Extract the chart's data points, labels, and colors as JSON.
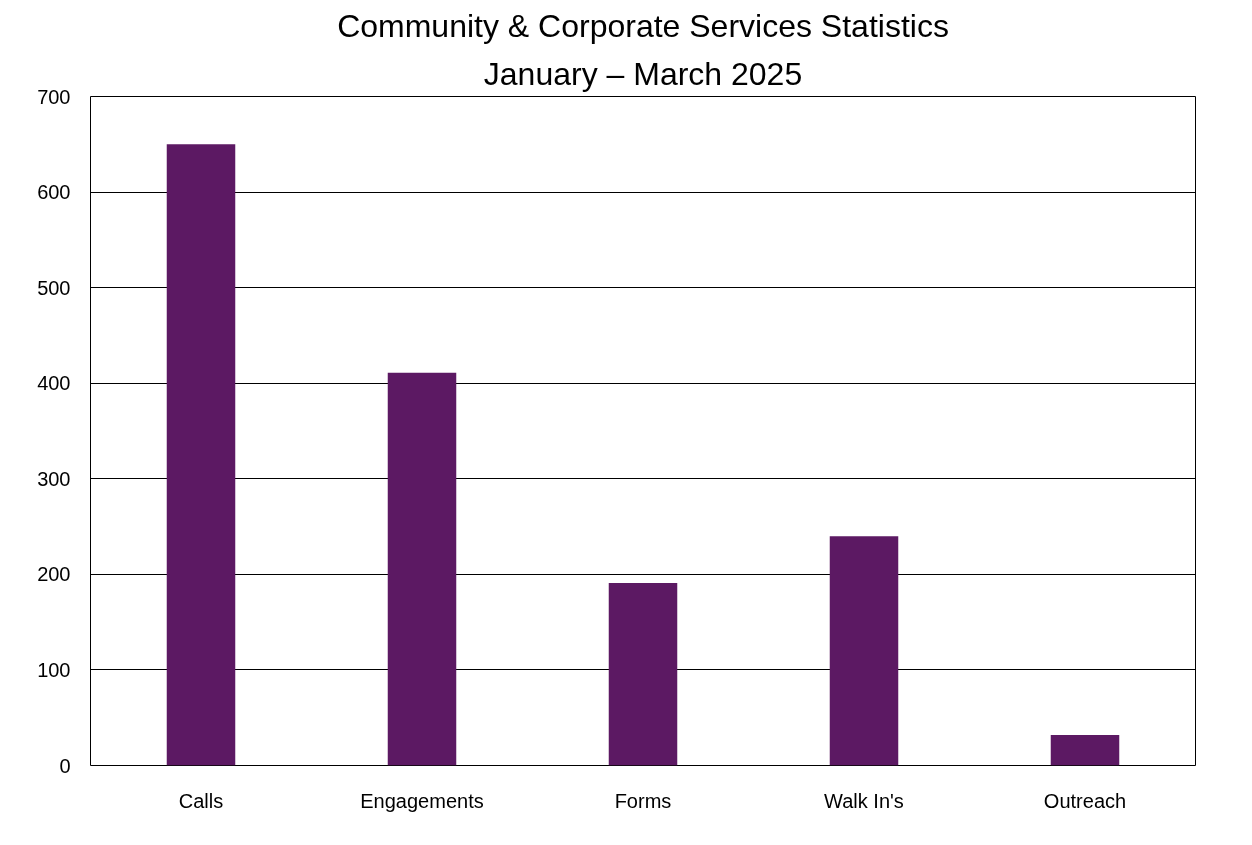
{
  "chart_data": {
    "type": "bar",
    "title": "Community & Corporate Services Statistics",
    "subtitle": "January – March 2025",
    "categories": [
      "Calls",
      "Engagements",
      "Forms",
      "Walk In's",
      "Outreach"
    ],
    "values": [
      650,
      411,
      191,
      240,
      32
    ],
    "color": "#5c1963",
    "ylim": [
      0,
      700
    ],
    "yticks": [
      0,
      100,
      200,
      300,
      400,
      500,
      600,
      700
    ],
    "grid": "y"
  }
}
